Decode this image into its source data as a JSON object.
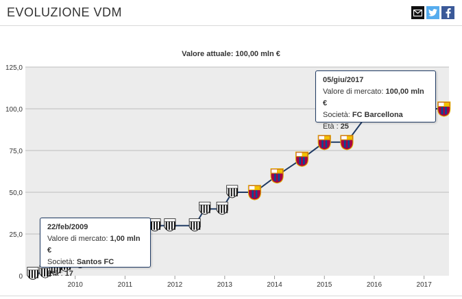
{
  "header": {
    "title": "EVOLUZIONE VDM",
    "share": [
      {
        "name": "mail-icon",
        "color": "#111111"
      },
      {
        "name": "twitter-icon",
        "color": "#55acee"
      },
      {
        "name": "facebook-icon",
        "color": "#3b5998"
      }
    ]
  },
  "chart_data": {
    "type": "line",
    "title": "Valore attuale: 100,00 mln €",
    "xlabel": "",
    "ylabel": "",
    "ylim": [
      0,
      125
    ],
    "xlim": [
      2009.0,
      2017.5
    ],
    "y_ticks": [
      "0",
      "25,0",
      "50,0",
      "75,0",
      "100,0",
      "125,0"
    ],
    "y_tick_values": [
      0,
      25,
      50,
      75,
      100,
      125
    ],
    "x_ticks": [
      "2010",
      "2011",
      "2012",
      "2013",
      "2014",
      "2015",
      "2016",
      "2017"
    ],
    "x_tick_values": [
      2010,
      2011,
      2012,
      2013,
      2014,
      2015,
      2016,
      2017
    ],
    "grid": true,
    "line_color": "#1f3a63",
    "series": [
      {
        "club": "Santos FC",
        "points": [
          {
            "x": 2009.15,
            "y": 1.0
          },
          {
            "x": 2009.4,
            "y": 2.0
          },
          {
            "x": 2009.6,
            "y": 4.0
          },
          {
            "x": 2009.8,
            "y": 6.0
          },
          {
            "x": 2010.1,
            "y": 8.0
          },
          {
            "x": 2010.4,
            "y": 10.0
          },
          {
            "x": 2010.7,
            "y": 12.0
          },
          {
            "x": 2011.0,
            "y": 18.0
          },
          {
            "x": 2011.3,
            "y": 24.0
          },
          {
            "x": 2011.6,
            "y": 30.0
          },
          {
            "x": 2011.9,
            "y": 30.0
          },
          {
            "x": 2012.4,
            "y": 30.0
          },
          {
            "x": 2012.6,
            "y": 40.0
          },
          {
            "x": 2012.95,
            "y": 40.0
          },
          {
            "x": 2013.15,
            "y": 50.0
          }
        ]
      },
      {
        "club": "FC Barcellona",
        "points": [
          {
            "x": 2013.6,
            "y": 50.0
          },
          {
            "x": 2014.05,
            "y": 60.0
          },
          {
            "x": 2014.55,
            "y": 70.0
          },
          {
            "x": 2015.0,
            "y": 80.0
          },
          {
            "x": 2015.45,
            "y": 80.0
          },
          {
            "x": 2015.95,
            "y": 100.0
          },
          {
            "x": 2016.45,
            "y": 100.0
          },
          {
            "x": 2016.95,
            "y": 100.0
          },
          {
            "x": 2017.4,
            "y": 100.0
          }
        ]
      }
    ],
    "tooltips": [
      {
        "date": "22/feb/2009",
        "value_label": "Valore di mercato:",
        "value": "1,00 mln €",
        "club_label": "Società:",
        "club": "Santos FC",
        "age_label": "Età :",
        "age": "17"
      },
      {
        "date": "05/giu/2017",
        "value_label": "Valore di mercato:",
        "value": "100,00 mln €",
        "club_label": "Società:",
        "club": "FC Barcellona",
        "age_label": "Età :",
        "age": "25"
      }
    ]
  }
}
